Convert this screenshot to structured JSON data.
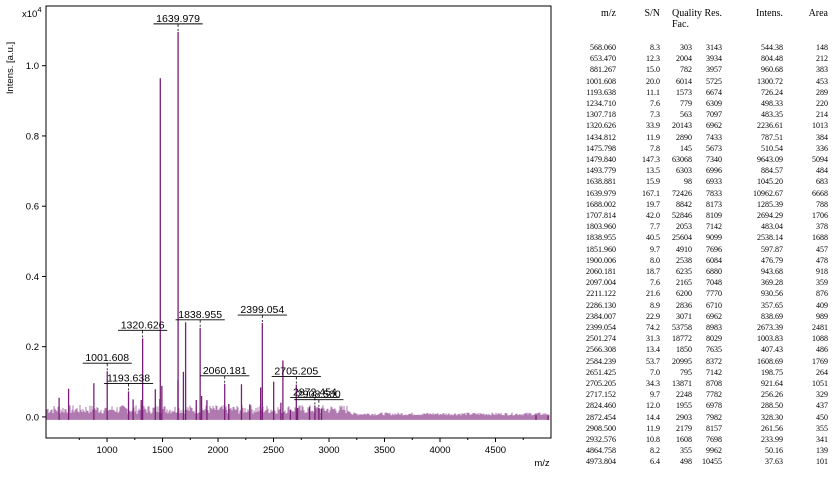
{
  "chart_data": {
    "type": "line",
    "ylabel": "Intens. [a.u.]",
    "xlabel": "m/z",
    "y_scale_label": "x10",
    "y_scale_exp": "4",
    "xlim": [
      450,
      5000
    ],
    "ylim": [
      -0.06,
      1.17
    ],
    "x_ticks": [
      1000,
      1500,
      2000,
      2500,
      3000,
      3500,
      4000,
      4500
    ],
    "y_ticks": [
      0.0,
      0.2,
      0.4,
      0.6,
      0.8,
      1.0
    ],
    "line_color": "#7a1f79",
    "peaks": [
      {
        "mz": 568.06,
        "intens": 0.0544
      },
      {
        "mz": 653.47,
        "intens": 0.0804
      },
      {
        "mz": 881.267,
        "intens": 0.0961
      },
      {
        "mz": 1001.608,
        "intens": 0.1301
      },
      {
        "mz": 1193.638,
        "intens": 0.0726
      },
      {
        "mz": 1234.71,
        "intens": 0.0498
      },
      {
        "mz": 1307.718,
        "intens": 0.0483
      },
      {
        "mz": 1320.626,
        "intens": 0.2237
      },
      {
        "mz": 1434.812,
        "intens": 0.0788
      },
      {
        "mz": 1475.798,
        "intens": 0.0511
      },
      {
        "mz": 1479.84,
        "intens": 0.9643
      },
      {
        "mz": 1493.779,
        "intens": 0.0885
      },
      {
        "mz": 1638.881,
        "intens": 0.1045
      },
      {
        "mz": 1639.979,
        "intens": 1.0963
      },
      {
        "mz": 1688.002,
        "intens": 0.1285
      },
      {
        "mz": 1707.814,
        "intens": 0.2694
      },
      {
        "mz": 1803.96,
        "intens": 0.0483
      },
      {
        "mz": 1838.955,
        "intens": 0.2538
      },
      {
        "mz": 1851.96,
        "intens": 0.0598
      },
      {
        "mz": 1900.006,
        "intens": 0.0477
      },
      {
        "mz": 2060.181,
        "intens": 0.0944
      },
      {
        "mz": 2097.004,
        "intens": 0.0369
      },
      {
        "mz": 2211.122,
        "intens": 0.0931
      },
      {
        "mz": 2286.13,
        "intens": 0.0358
      },
      {
        "mz": 2384.007,
        "intens": 0.0839
      },
      {
        "mz": 2399.054,
        "intens": 0.2673
      },
      {
        "mz": 2501.274,
        "intens": 0.1004
      },
      {
        "mz": 2566.308,
        "intens": 0.0407
      },
      {
        "mz": 2584.239,
        "intens": 0.1609
      },
      {
        "mz": 2651.425,
        "intens": 0.0199
      },
      {
        "mz": 2705.205,
        "intens": 0.0922
      },
      {
        "mz": 2717.152,
        "intens": 0.0256
      },
      {
        "mz": 2824.46,
        "intens": 0.0289
      },
      {
        "mz": 2872.454,
        "intens": 0.0328
      },
      {
        "mz": 2908.5,
        "intens": 0.0262
      },
      {
        "mz": 2932.576,
        "intens": 0.0234
      },
      {
        "mz": 4864.758,
        "intens": 0.005
      },
      {
        "mz": 4973.804,
        "intens": 0.0038
      }
    ],
    "annotations": [
      {
        "label": "1639.979",
        "mz": 1639.979
      },
      {
        "label": "1320.626",
        "mz": 1320.626
      },
      {
        "label": "1193.638",
        "mz": 1193.638
      },
      {
        "label": "1001.608",
        "mz": 1001.608
      },
      {
        "label": "1838.955",
        "mz": 1838.955
      },
      {
        "label": "2060.181",
        "mz": 2060.181
      },
      {
        "label": "2399.054",
        "mz": 2399.054
      },
      {
        "label": "2705.205",
        "mz": 2705.205
      },
      {
        "label": "2872.454",
        "mz": 2872.454
      },
      {
        "label": "2908.500",
        "mz": 2908.5
      }
    ]
  },
  "peak_table": {
    "columns": [
      "m/z",
      "S/N",
      "Quality Fac.",
      "Res.",
      "Intens.",
      "Area"
    ],
    "rows": [
      [
        "568.060",
        "8.3",
        "303",
        "3143",
        "544.38",
        "148"
      ],
      [
        "653.470",
        "12.3",
        "2004",
        "3934",
        "804.48",
        "212"
      ],
      [
        "881.267",
        "15.0",
        "782",
        "3957",
        "960.68",
        "383"
      ],
      [
        "1001.608",
        "20.0",
        "6014",
        "5725",
        "1300.72",
        "453"
      ],
      [
        "1193.638",
        "11.1",
        "1573",
        "6674",
        "726.24",
        "289"
      ],
      [
        "1234.710",
        "7.6",
        "779",
        "6309",
        "498.33",
        "220"
      ],
      [
        "1307.718",
        "7.3",
        "563",
        "7097",
        "483.35",
        "214"
      ],
      [
        "1320.626",
        "33.9",
        "20143",
        "6962",
        "2236.61",
        "1013"
      ],
      [
        "1434.812",
        "11.9",
        "2890",
        "7433",
        "787.51",
        "384"
      ],
      [
        "1475.798",
        "7.8",
        "145",
        "5673",
        "510.54",
        "336"
      ],
      [
        "1479.840",
        "147.3",
        "63068",
        "7340",
        "9643.09",
        "5094"
      ],
      [
        "1493.779",
        "13.5",
        "6303",
        "6996",
        "884.57",
        "484"
      ],
      [
        "1638.881",
        "15.9",
        "98",
        "6933",
        "1045.20",
        "683"
      ],
      [
        "1639.979",
        "167.1",
        "72426",
        "7833",
        "10962.67",
        "6668"
      ],
      [
        "1688.002",
        "19.7",
        "8842",
        "8173",
        "1285.39",
        "788"
      ],
      [
        "1707.814",
        "42.0",
        "52846",
        "8109",
        "2694.29",
        "1706"
      ],
      [
        "1803.960",
        "7.7",
        "2053",
        "7142",
        "483.04",
        "378"
      ],
      [
        "1838.955",
        "40.5",
        "25604",
        "9099",
        "2538.14",
        "1688"
      ],
      [
        "1851.960",
        "9.7",
        "4910",
        "7696",
        "597.87",
        "457"
      ],
      [
        "1900.006",
        "8.0",
        "2538",
        "6084",
        "476.79",
        "478"
      ],
      [
        "2060.181",
        "18.7",
        "6235",
        "6880",
        "943.68",
        "918"
      ],
      [
        "2097.004",
        "7.6",
        "2165",
        "7048",
        "369.28",
        "359"
      ],
      [
        "2211.122",
        "21.6",
        "6200",
        "7770",
        "930.56",
        "876"
      ],
      [
        "2286.130",
        "8.9",
        "2836",
        "6710",
        "357.65",
        "409"
      ],
      [
        "2384.007",
        "22.9",
        "3071",
        "6962",
        "838.69",
        "989"
      ],
      [
        "2399.054",
        "74.2",
        "53758",
        "8983",
        "2673.39",
        "2481"
      ],
      [
        "2501.274",
        "31.3",
        "18772",
        "8029",
        "1003.83",
        "1088"
      ],
      [
        "2566.308",
        "13.4",
        "1850",
        "7635",
        "407.43",
        "486"
      ],
      [
        "2584.239",
        "53.7",
        "20995",
        "8372",
        "1608.69",
        "1769"
      ],
      [
        "2651.425",
        "7.0",
        "795",
        "7142",
        "198.75",
        "264"
      ],
      [
        "2705.205",
        "34.3",
        "13871",
        "8708",
        "921.64",
        "1051"
      ],
      [
        "2717.152",
        "9.7",
        "2248",
        "7782",
        "256.26",
        "329"
      ],
      [
        "2824.460",
        "12.0",
        "1955",
        "6978",
        "288.50",
        "437"
      ],
      [
        "2872.454",
        "14.4",
        "2903",
        "7982",
        "328.30",
        "450"
      ],
      [
        "2908.500",
        "11.9",
        "2179",
        "8157",
        "261.56",
        "355"
      ],
      [
        "2932.576",
        "10.8",
        "1608",
        "7698",
        "233.99",
        "341"
      ],
      [
        "4864.758",
        "8.2",
        "355",
        "9962",
        "50.16",
        "139"
      ],
      [
        "4973.804",
        "6.4",
        "498",
        "10455",
        "37.63",
        "101"
      ]
    ]
  }
}
